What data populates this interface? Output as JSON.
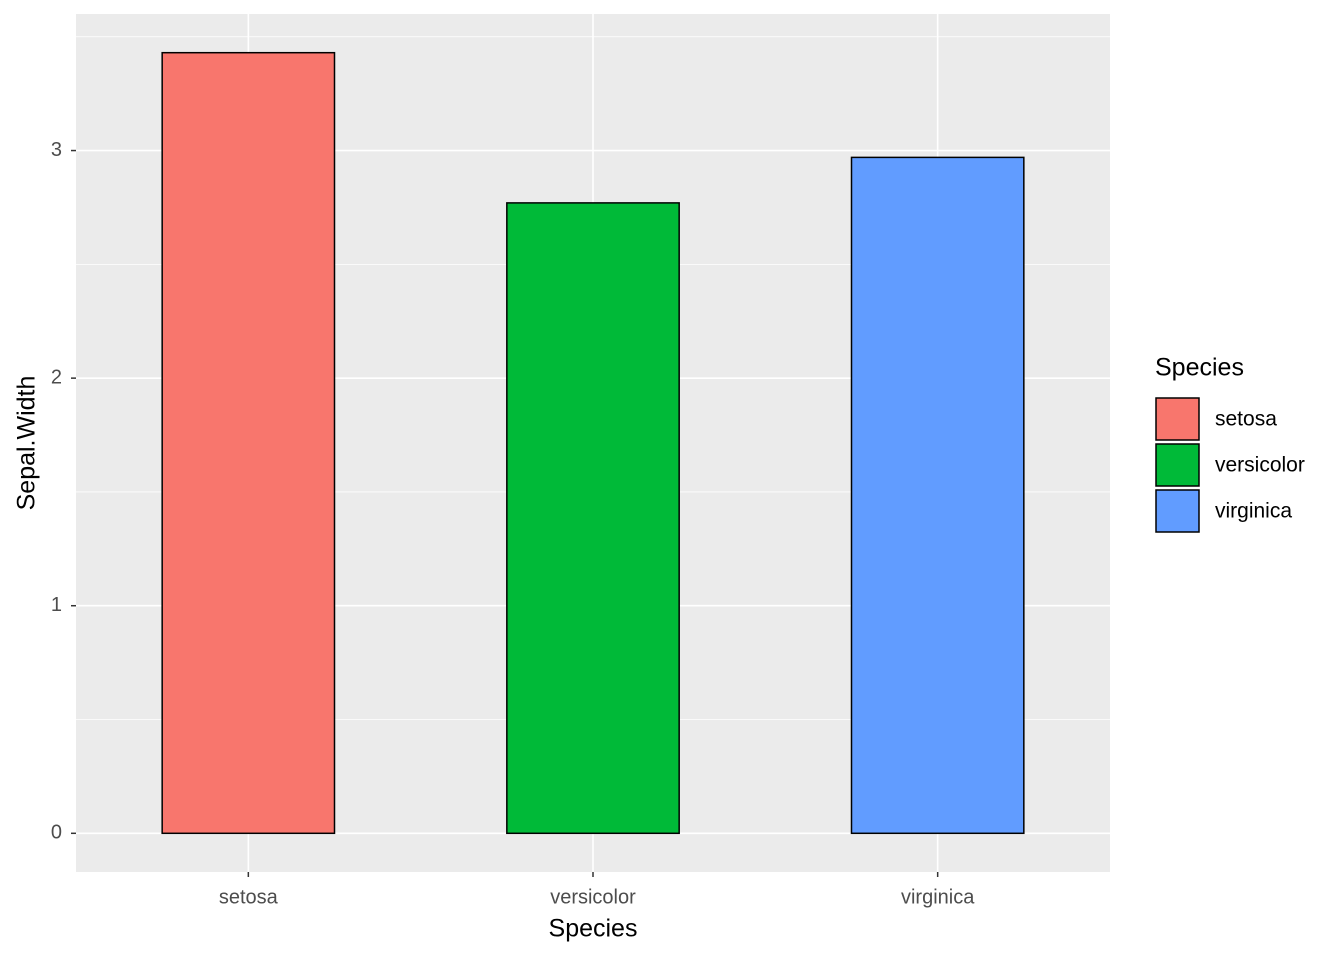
{
  "chart_data": {
    "type": "bar",
    "x_label": "Species",
    "y_label": "Sepal.Width",
    "categories": [
      "setosa",
      "versicolor",
      "virginica"
    ],
    "values": [
      3.43,
      2.77,
      2.97
    ],
    "colors": [
      "#f8766d",
      "#00ba38",
      "#619cff"
    ],
    "legend_title": "Species",
    "ylim": [
      -0.17,
      3.6
    ],
    "yticks": [
      0,
      1,
      2,
      3
    ],
    "yminorticks": [
      0.5,
      1.5,
      2.5,
      3.5
    ],
    "grid": true,
    "legend": "right"
  }
}
